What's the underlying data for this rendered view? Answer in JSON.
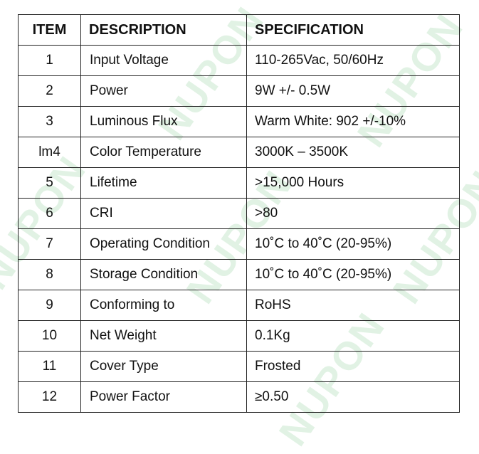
{
  "watermark": "NUPON",
  "table": {
    "headers": [
      "ITEM",
      "DESCRIPTION",
      "SPECIFICATION"
    ],
    "rows": [
      [
        "1",
        "Input Voltage",
        "110-265Vac, 50/60Hz"
      ],
      [
        "2",
        "Power",
        "9W +/- 0.5W"
      ],
      [
        "3",
        "Luminous Flux",
        "Warm White: 902 +/-10%"
      ],
      [
        "lm4",
        "Color Temperature",
        "3000K – 3500K"
      ],
      [
        "5",
        "Lifetime",
        ">15,000 Hours"
      ],
      [
        "6",
        "CRI",
        ">80"
      ],
      [
        "7",
        "Operating Condition",
        "10˚C to 40˚C (20-95%)"
      ],
      [
        "8",
        "Storage Condition",
        "10˚C to 40˚C (20-95%)"
      ],
      [
        "9",
        "Conforming to",
        "RoHS"
      ],
      [
        "10",
        "Net Weight",
        "0.1Kg"
      ],
      [
        "11",
        "Cover Type",
        "Frosted"
      ],
      [
        "12",
        "Power Factor",
        "≥0.50"
      ]
    ]
  }
}
